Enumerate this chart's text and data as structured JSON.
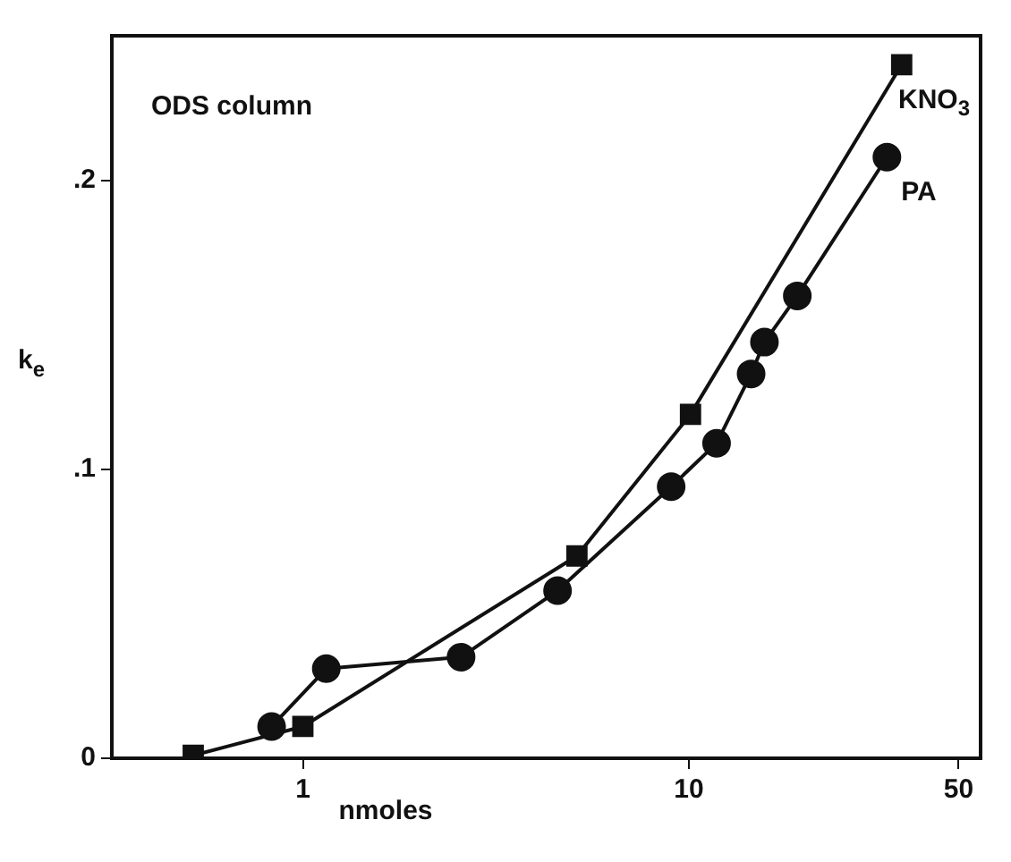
{
  "chart_data": {
    "type": "line",
    "xlabel": "nmoles",
    "ylabel": "k$_{e}$",
    "annotations": [
      "ODS column"
    ],
    "log": "x",
    "xlim": [
      0.32,
      57
    ],
    "xticks": [
      1,
      10,
      50
    ],
    "ylim": [
      0,
      0.25
    ],
    "yticks": [
      {
        "value": 0,
        "label": "0"
      },
      {
        "value": 0.1,
        "label": ".1"
      },
      {
        "value": 0.2,
        "label": ".2"
      }
    ],
    "grid": false,
    "legend": false,
    "series": [
      {
        "name": "KNO$_{3}$",
        "color": "#111111",
        "marker": "square",
        "x": [
          0.52,
          1.0,
          5.13,
          10.1,
          35.6
        ],
        "values": [
          0.001,
          0.011,
          0.07,
          0.119,
          0.24
        ]
      },
      {
        "name": "PA",
        "color": "#111111",
        "marker": "circle",
        "x": [
          0.83,
          1.15,
          2.57,
          4.57,
          9.0,
          11.8,
          14.5,
          15.7,
          19.1,
          32.6
        ],
        "values": [
          0.011,
          0.031,
          0.035,
          0.058,
          0.094,
          0.109,
          0.133,
          0.144,
          0.16,
          0.208
        ]
      }
    ]
  }
}
